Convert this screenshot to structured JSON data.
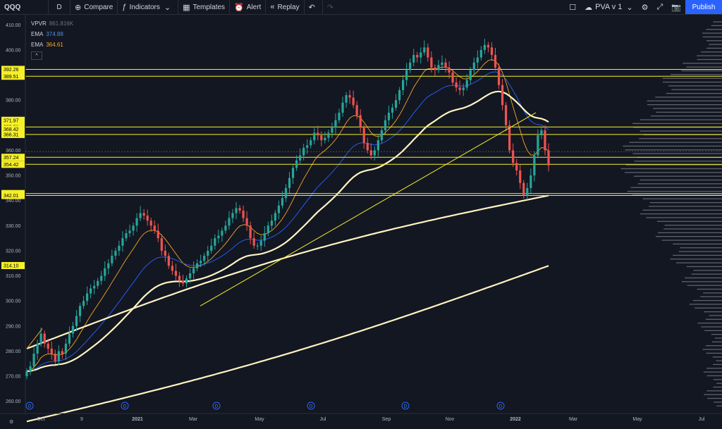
{
  "toolbar": {
    "symbol": "QQQ",
    "interval": "D",
    "compare": "Compare",
    "indicators": "Indicators",
    "templates": "Templates",
    "alert": "Alert",
    "replay": "Replay",
    "layout_name": "PVA v 1",
    "publish": "Publish"
  },
  "legend": {
    "vpvr_name": "VPVR",
    "vpvr_value": "861.816K",
    "ema1_name": "EMA",
    "ema1_value": "374.88",
    "ema2_name": "EMA",
    "ema2_value": "364.61",
    "collapse": "^"
  },
  "colors": {
    "background": "#131722",
    "up": "#26a69a",
    "down": "#ef5350",
    "level": "#f6f02a",
    "ma_white": "#fff4c2",
    "ema_blue": "#2962ff",
    "ema_orange": "#f5a623",
    "volume_profile": "#6b6e78"
  },
  "chart_data": {
    "type": "candlestick",
    "symbol": "QQQ",
    "interval": "D",
    "x_ticks": [
      "Oct",
      "9",
      "2021",
      "Mar",
      "May",
      "Jul",
      "Sep",
      "Nov",
      "2022",
      "Mar",
      "May",
      "Jul"
    ],
    "y_ticks": [
      260,
      270,
      280,
      290,
      300,
      310,
      320,
      330,
      340,
      350,
      360,
      370,
      380,
      390,
      400,
      410
    ],
    "ylim": [
      256,
      414
    ],
    "price_labels": [
      "392.26",
      "389.51",
      "371.97",
      "369.31",
      "368.42",
      "366.31",
      "357.24",
      "354.42",
      "342.80",
      "342.13",
      "342.01",
      "314.10"
    ],
    "horizontal_levels": [
      392.26,
      389.51,
      369.31,
      366.31,
      357.24,
      354.42,
      342.8,
      342.01
    ],
    "close_series": [
      272,
      274,
      279,
      283,
      287,
      283,
      281,
      279,
      276,
      280,
      279,
      283,
      287,
      290,
      294,
      298,
      300,
      303,
      305,
      306,
      308,
      310,
      313,
      315,
      318,
      320,
      322,
      325,
      327,
      328,
      330,
      333,
      335,
      334,
      332,
      330,
      328,
      325,
      320,
      318,
      314,
      312,
      310,
      308,
      307,
      309,
      311,
      313,
      315,
      316,
      318,
      320,
      322,
      325,
      326,
      328,
      330,
      333,
      335,
      337,
      336,
      333,
      330,
      325,
      322,
      322,
      324,
      327,
      330,
      332,
      335,
      338,
      341,
      345,
      349,
      353,
      356,
      358,
      361,
      362,
      364,
      367,
      366,
      364,
      365,
      367,
      369,
      372,
      375,
      379,
      382,
      381,
      378,
      374,
      369,
      363,
      360,
      358,
      360,
      364,
      368,
      372,
      375,
      377,
      380,
      384,
      388,
      392,
      395,
      398,
      397,
      399,
      401,
      397,
      393,
      392,
      394,
      395,
      393,
      391,
      387,
      385,
      384,
      385,
      388,
      392,
      395,
      397,
      400,
      402,
      401,
      398,
      393,
      386,
      378,
      370,
      360,
      355,
      352,
      347,
      342,
      345,
      350,
      358,
      366,
      368,
      360,
      354
    ]
  }
}
